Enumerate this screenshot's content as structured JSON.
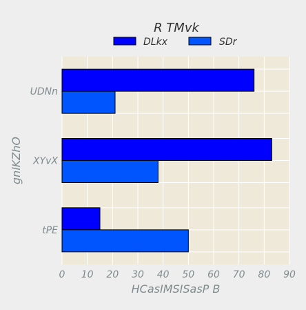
{
  "chart_data": {
    "type": "bar",
    "orientation": "horizontal",
    "title": "R TMvk",
    "xlabel": "HCasIMSISasP B",
    "ylabel": "gnlKZhO",
    "categories": [
      "UDNn",
      "XYvX",
      "tPE"
    ],
    "series": [
      {
        "name": "DLkx",
        "values": [
          76,
          83,
          15
        ],
        "color": "#0000ff"
      },
      {
        "name": "SDr",
        "values": [
          21,
          38,
          50
        ],
        "color": "#0055ff"
      }
    ],
    "xlim": [
      0,
      90
    ],
    "xticks": [
      "0",
      "10",
      "20",
      "30",
      "40",
      "50",
      "60",
      "70",
      "80",
      "90"
    ],
    "grid": true,
    "legend_position": "top-center",
    "plot_background": "#efe9da",
    "page_background": "#eeeeee",
    "grid_color": "#ffffff",
    "bar_edge_color": "#000000"
  }
}
